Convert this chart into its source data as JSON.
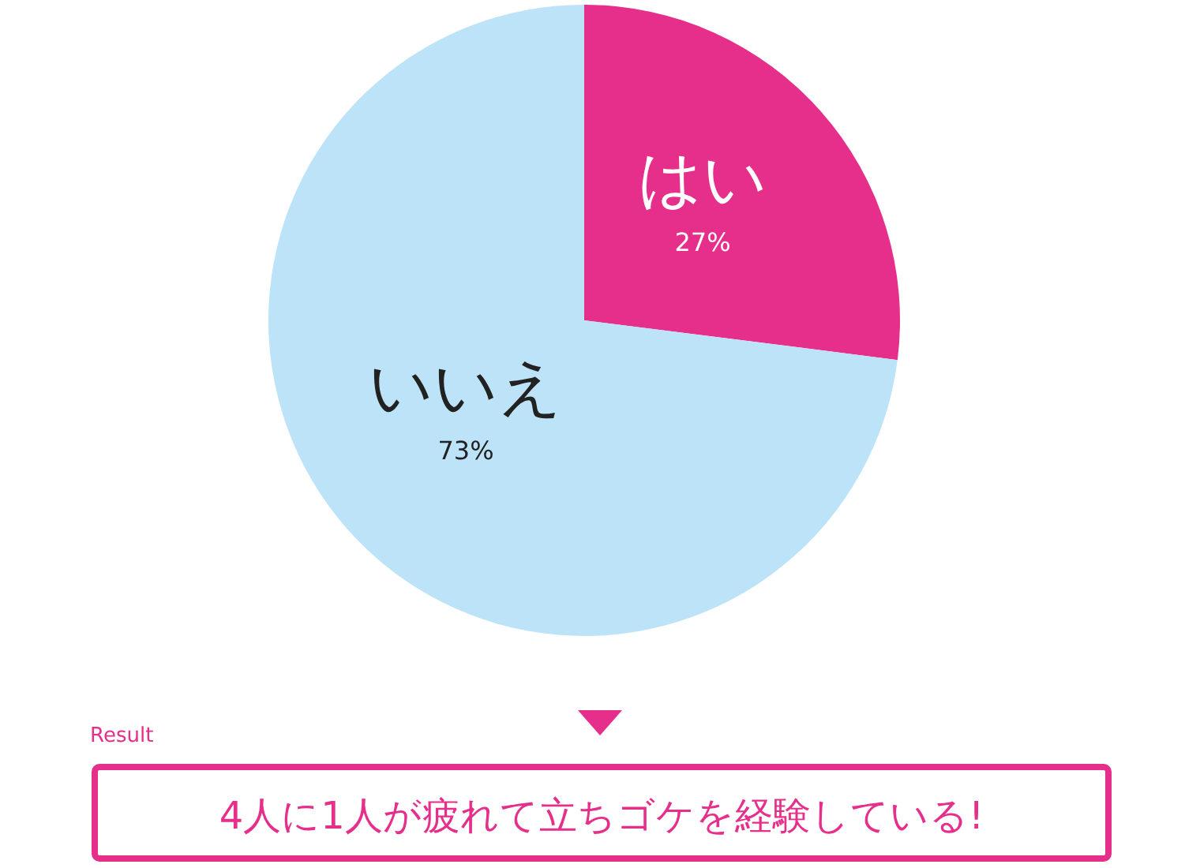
{
  "chart_data": {
    "type": "pie",
    "categories": [
      "はい",
      "いいえ"
    ],
    "values": [
      27,
      73
    ],
    "colors": [
      "#e62e8b",
      "#bce3f8"
    ],
    "value_labels": [
      "27%",
      "73%"
    ],
    "annotations": [
      "Result",
      "4人に1人が疲れて立ちゴケを経験している!"
    ]
  }
}
